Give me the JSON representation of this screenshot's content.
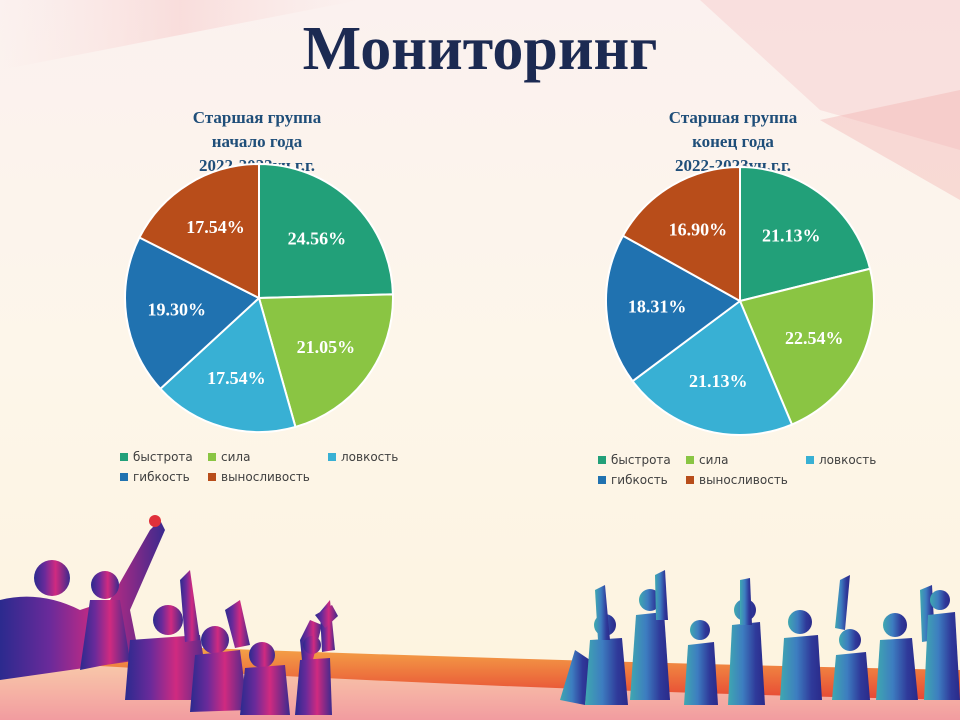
{
  "slide": {
    "title": "Мониторинг"
  },
  "colors": {
    "быстрота": "#22a079",
    "сила": "#8ac543",
    "ловкость": "#38b0d4",
    "гибкость": "#2072b0",
    "выносливость": "#b84d1a"
  },
  "legend": [
    "быстрота",
    "сила",
    "ловкость",
    "гибкость",
    "выносливость"
  ],
  "chart_data": [
    {
      "type": "pie",
      "title": [
        "Старшая группа",
        "начало года",
        "2022-2023уч.г.г."
      ],
      "categories": [
        "быстрота",
        "сила",
        "ловкость",
        "гибкость",
        "выносливость"
      ],
      "values": [
        24.56,
        21.05,
        17.54,
        19.3,
        17.54
      ],
      "labels": [
        "24.56%",
        "21.05%",
        "17.54%",
        "19.30%",
        "17.54%"
      ],
      "legend_position": "bottom"
    },
    {
      "type": "pie",
      "title": [
        "Старшая группа",
        "конец года",
        "2022-2023уч.г.г."
      ],
      "categories": [
        "быстрота",
        "сила",
        "ловкость",
        "гибкость",
        "выносливость"
      ],
      "values": [
        21.13,
        22.54,
        21.13,
        18.31,
        16.9
      ],
      "labels": [
        "21.13%",
        "22.54%",
        "21.13%",
        "18.31%",
        "16.90%"
      ],
      "legend_position": "bottom"
    }
  ]
}
